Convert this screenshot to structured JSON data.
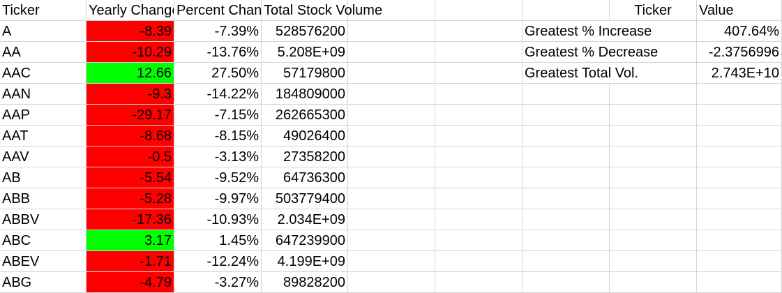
{
  "headers": {
    "ticker": "Ticker",
    "yearly_change": "Yearly Change",
    "percent_change": "Percent Change",
    "total_volume": "Total Stock Volume",
    "summary_ticker": "Ticker",
    "summary_value": "Value"
  },
  "rows": [
    {
      "ticker": "A",
      "yearly_change": "-8.39",
      "percent_change": "-7.39%",
      "volume": "528576200",
      "fill": "red"
    },
    {
      "ticker": "AA",
      "yearly_change": "-10.29",
      "percent_change": "-13.76%",
      "volume": "5.208E+09",
      "fill": "red"
    },
    {
      "ticker": "AAC",
      "yearly_change": "12.66",
      "percent_change": "27.50%",
      "volume": "57179800",
      "fill": "green"
    },
    {
      "ticker": "AAN",
      "yearly_change": "-9.3",
      "percent_change": "-14.22%",
      "volume": "184809000",
      "fill": "red"
    },
    {
      "ticker": "AAP",
      "yearly_change": "-29.17",
      "percent_change": "-7.15%",
      "volume": "262665300",
      "fill": "red"
    },
    {
      "ticker": "AAT",
      "yearly_change": "-8.68",
      "percent_change": "-8.15%",
      "volume": "49026400",
      "fill": "red"
    },
    {
      "ticker": "AAV",
      "yearly_change": "-0.5",
      "percent_change": "-3.13%",
      "volume": "27358200",
      "fill": "red"
    },
    {
      "ticker": "AB",
      "yearly_change": "-5.54",
      "percent_change": "-9.52%",
      "volume": "64736300",
      "fill": "red"
    },
    {
      "ticker": "ABB",
      "yearly_change": "-5.28",
      "percent_change": "-9.97%",
      "volume": "503779400",
      "fill": "red"
    },
    {
      "ticker": "ABBV",
      "yearly_change": "-17.36",
      "percent_change": "-10.93%",
      "volume": "2.034E+09",
      "fill": "red"
    },
    {
      "ticker": "ABC",
      "yearly_change": "3.17",
      "percent_change": "1.45%",
      "volume": "647239900",
      "fill": "green"
    },
    {
      "ticker": "ABEV",
      "yearly_change": "-1.71",
      "percent_change": "-12.24%",
      "volume": "4.199E+09",
      "fill": "red"
    },
    {
      "ticker": "ABG",
      "yearly_change": "-4.79",
      "percent_change": "-3.27%",
      "volume": "89828200",
      "fill": "red"
    }
  ],
  "summary": [
    {
      "label": "Greatest % Increase",
      "ticker": "",
      "value": "407.64%"
    },
    {
      "label": "Greatest % Decrease",
      "ticker": "",
      "value": "-2.3756996"
    },
    {
      "label": "Greatest Total Vol.",
      "ticker": "",
      "value": "2.743E+10"
    }
  ],
  "colors": {
    "negative_fill": "#ff0000",
    "positive_fill": "#00ff00",
    "gridline": "#d4d4d4"
  }
}
